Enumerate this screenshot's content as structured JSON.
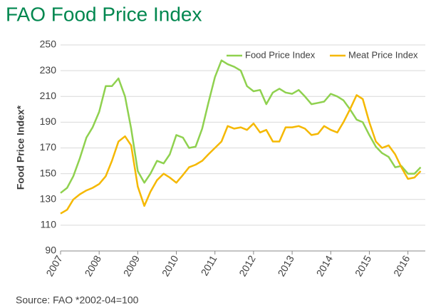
{
  "chart_data": {
    "type": "line",
    "title": "FAO Food Price Index",
    "ylabel": "Food Price Index*",
    "source": "Source: FAO  *2002-04=100",
    "x": [
      2007.0,
      2007.17,
      2007.33,
      2007.5,
      2007.67,
      2007.83,
      2008.0,
      2008.17,
      2008.33,
      2008.5,
      2008.67,
      2008.83,
      2009.0,
      2009.17,
      2009.33,
      2009.5,
      2009.67,
      2009.83,
      2010.0,
      2010.17,
      2010.33,
      2010.5,
      2010.67,
      2010.83,
      2011.0,
      2011.17,
      2011.33,
      2011.5,
      2011.67,
      2011.83,
      2012.0,
      2012.17,
      2012.33,
      2012.5,
      2012.67,
      2012.83,
      2013.0,
      2013.17,
      2013.33,
      2013.5,
      2013.67,
      2013.83,
      2014.0,
      2014.17,
      2014.33,
      2014.5,
      2014.67,
      2014.83,
      2015.0,
      2015.17,
      2015.33,
      2015.5,
      2015.67,
      2015.83,
      2016.0,
      2016.17,
      2016.33
    ],
    "series": [
      {
        "name": "Food Price Index",
        "color": "#8fd14f",
        "values": [
          135,
          139,
          148,
          162,
          178,
          186,
          198,
          218,
          218,
          224,
          210,
          185,
          152,
          143,
          150,
          160,
          158,
          165,
          180,
          178,
          170,
          171,
          185,
          205,
          225,
          238,
          235,
          233,
          230,
          218,
          214,
          215,
          204,
          213,
          216,
          213,
          212,
          215,
          210,
          204,
          205,
          206,
          212,
          210,
          207,
          200,
          192,
          190,
          180,
          171,
          166,
          163,
          155,
          156,
          150,
          150,
          155
        ]
      },
      {
        "name": "Meat Price Index",
        "color": "#f5b800",
        "values": [
          119,
          122,
          130,
          134,
          137,
          139,
          142,
          148,
          160,
          175,
          179,
          172,
          140,
          125,
          136,
          145,
          150,
          147,
          143,
          149,
          155,
          157,
          160,
          165,
          170,
          175,
          187,
          185,
          186,
          184,
          189,
          182,
          184,
          175,
          175,
          186,
          186,
          187,
          185,
          180,
          181,
          187,
          184,
          182,
          190,
          200,
          211,
          208,
          190,
          175,
          170,
          172,
          165,
          155,
          146,
          147,
          152
        ]
      }
    ],
    "xlim": [
      2007,
      2016.45
    ],
    "xticks": [
      2007,
      2008,
      2009,
      2010,
      2011,
      2012,
      2013,
      2014,
      2015,
      2016
    ],
    "ylim": [
      90,
      250
    ],
    "yticks": [
      90,
      110,
      130,
      150,
      170,
      190,
      210,
      230,
      250
    ],
    "grid": true,
    "legend": "top-right"
  }
}
